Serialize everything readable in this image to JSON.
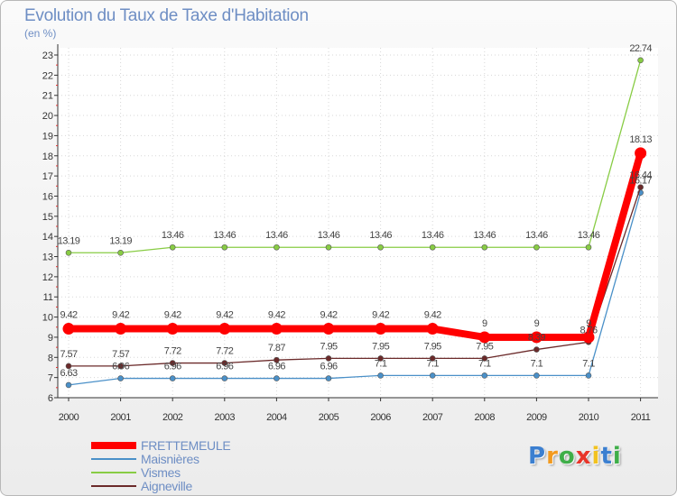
{
  "header": {
    "title": "Evolution du Taux de Taxe d'Habitation",
    "unit": "(en %)"
  },
  "chart_data": {
    "type": "line",
    "title": "Evolution du Taux de Taxe d'Habitation",
    "ylabel": "(en %)",
    "xlabel": "",
    "x": [
      "2000",
      "2001",
      "2002",
      "2003",
      "2004",
      "2005",
      "2006",
      "2007",
      "2008",
      "2009",
      "2010",
      "2011"
    ],
    "ylim": [
      6,
      23
    ],
    "yticks": [
      "6",
      "7",
      "8",
      "9",
      "10",
      "11",
      "12",
      "13",
      "14",
      "15",
      "16",
      "17",
      "18",
      "19",
      "20",
      "21",
      "22",
      "23"
    ],
    "grid": true,
    "series": [
      {
        "name": "FRETTEMEULE",
        "color": "#ff0000",
        "values": [
          9.42,
          9.42,
          9.42,
          9.42,
          9.42,
          9.42,
          9.42,
          9.42,
          9,
          9,
          9,
          18.13
        ],
        "labels": [
          "9.42",
          "9.42",
          "9.42",
          "9.42",
          "9.42",
          "9.42",
          "9.42",
          "9.42",
          "9",
          "9",
          "9",
          "18.13"
        ]
      },
      {
        "name": "Maisnières",
        "color": "#4a90c8",
        "values": [
          6.63,
          6.96,
          6.96,
          6.96,
          6.96,
          6.96,
          7.1,
          7.1,
          7.1,
          7.1,
          7.1,
          16.17
        ],
        "labels": [
          "6.63",
          "6.96",
          "6.96",
          "6.96",
          "6.96",
          "6.96",
          "7.1",
          "7.1",
          "7.1",
          "7.1",
          "7.1",
          "16.17"
        ]
      },
      {
        "name": "Vismes",
        "color": "#88cc44",
        "values": [
          13.19,
          13.19,
          13.46,
          13.46,
          13.46,
          13.46,
          13.46,
          13.46,
          13.46,
          13.46,
          13.46,
          22.74
        ],
        "labels": [
          "13.19",
          "13.19",
          "13.46",
          "13.46",
          "13.46",
          "13.46",
          "13.46",
          "13.46",
          "13.46",
          "13.46",
          "13.46",
          "22.74"
        ]
      },
      {
        "name": "Aigneville",
        "color": "#6b2a2a",
        "values": [
          7.57,
          7.57,
          7.72,
          7.72,
          7.87,
          7.95,
          7.95,
          7.95,
          7.95,
          8.39,
          8.76,
          16.44
        ],
        "labels": [
          "7.57",
          "7.57",
          "7.72",
          "7.72",
          "7.87",
          "7.95",
          "7.95",
          "7.95",
          "7.95",
          "8.39",
          "8.76",
          "16.44"
        ]
      }
    ]
  },
  "logo": {
    "letters": [
      "P",
      "r",
      "o",
      "x",
      "i",
      "t",
      "i"
    ],
    "colors": [
      "#3b7fd0",
      "#f29a1f",
      "#3fae49",
      "#e8352a",
      "#f2c21f",
      "#3b7fd0",
      "#3fae49"
    ]
  }
}
